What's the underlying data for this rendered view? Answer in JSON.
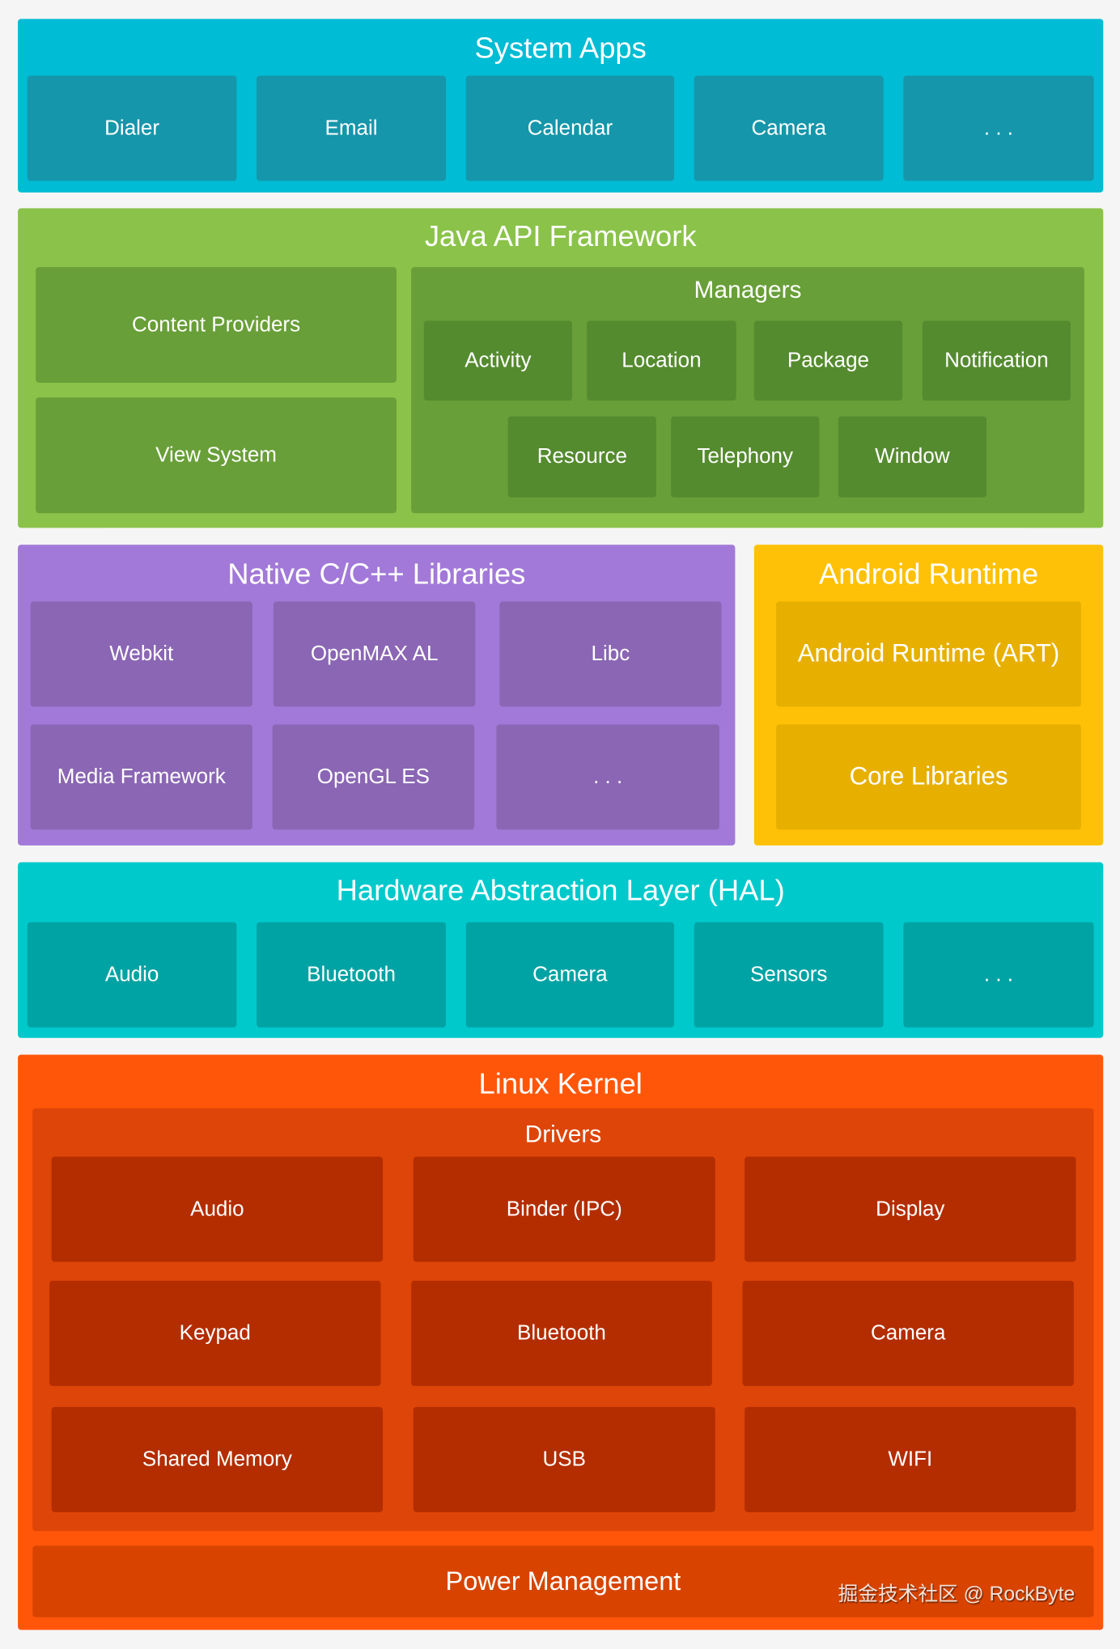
{
  "system_apps": {
    "title": "System Apps",
    "items": [
      "Dialer",
      "Email",
      "Calendar",
      "Camera",
      ". . ."
    ]
  },
  "java_api": {
    "title": "Java API Framework",
    "content_providers": "Content Providers",
    "view_system": "View System",
    "managers": {
      "title": "Managers",
      "items": [
        "Activity",
        "Location",
        "Package",
        "Notification",
        "Resource",
        "Telephony",
        "Window"
      ]
    }
  },
  "native_libs": {
    "title": "Native C/C++ Libraries",
    "items": [
      "Webkit",
      "OpenMAX AL",
      "Libc",
      "Media Framework",
      "OpenGL ES",
      ". . ."
    ]
  },
  "android_runtime": {
    "title": "Android Runtime",
    "items": [
      "Android Runtime (ART)",
      "Core Libraries"
    ]
  },
  "hal": {
    "title": "Hardware Abstraction Layer (HAL)",
    "items": [
      "Audio",
      "Bluetooth",
      "Camera",
      "Sensors",
      ". . ."
    ]
  },
  "linux_kernel": {
    "title": "Linux Kernel",
    "drivers": {
      "title": "Drivers",
      "items": [
        "Audio",
        "Binder (IPC)",
        "Display",
        "Keypad",
        "Bluetooth",
        "Camera",
        "Shared Memory",
        "USB",
        "WIFI"
      ]
    },
    "power_management": "Power Management"
  },
  "watermark": "掘金技术社区 @ RockByte",
  "colors": {
    "system_apps": "#00BCD4",
    "java_api": "#8BC34A",
    "native_libs": "#A279D8",
    "android_runtime": "#FFC107",
    "hal": "#00C9CC",
    "linux_kernel": "#FF5609"
  }
}
